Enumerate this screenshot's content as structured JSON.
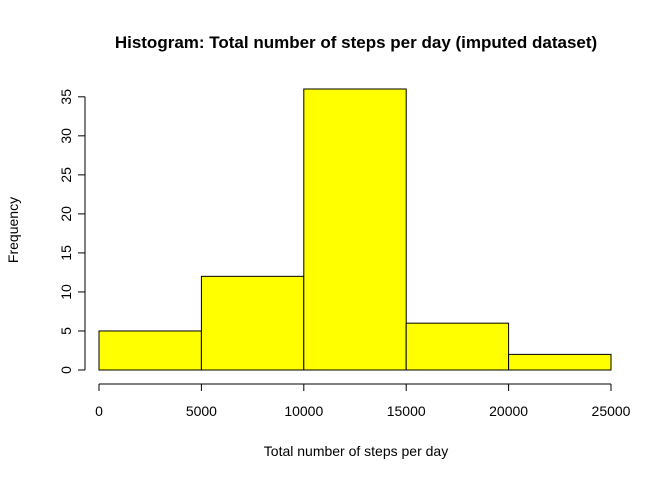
{
  "chart_data": {
    "type": "bar",
    "title": "Histogram: Total number of steps per day (imputed dataset)",
    "xlabel": "Total number of steps per day",
    "ylabel": "Frequency",
    "bins": [
      {
        "from": 0,
        "to": 5000,
        "value": 5
      },
      {
        "from": 5000,
        "to": 10000,
        "value": 12
      },
      {
        "from": 10000,
        "to": 15000,
        "value": 36
      },
      {
        "from": 15000,
        "to": 20000,
        "value": 6
      },
      {
        "from": 20000,
        "to": 25000,
        "value": 2
      }
    ],
    "xlim": [
      0,
      25000
    ],
    "ylim": [
      0,
      36
    ],
    "x_ticks": [
      "0",
      "5000",
      "10000",
      "15000",
      "20000",
      "25000"
    ],
    "y_ticks": [
      "0",
      "5",
      "10",
      "15",
      "20",
      "25",
      "30",
      "35"
    ],
    "bar_color": "#ffff00",
    "bar_border_color": "#000000",
    "grid": false,
    "legend": "none"
  }
}
